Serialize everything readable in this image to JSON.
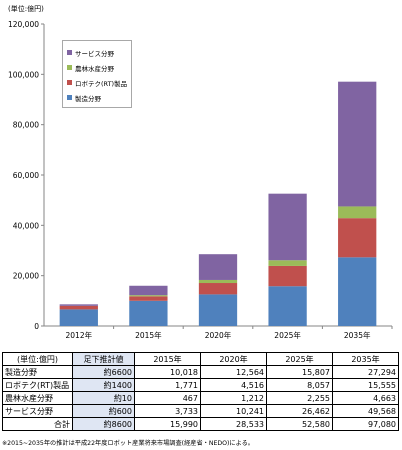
{
  "chart_data": {
    "type": "stacked-bar",
    "unit_label": "(単位:億円)",
    "categories": [
      "2012年",
      "2015年",
      "2020年",
      "2025年",
      "2035年"
    ],
    "ylim": [
      0,
      120000
    ],
    "yticks": [
      "0",
      "20,000",
      "40,000",
      "60,000",
      "80,000",
      "100,000",
      "120,000"
    ],
    "grid": false,
    "legend_position": "top-left",
    "series": [
      {
        "name": "製造分野",
        "color": "#4f81bd",
        "values": [
          6600,
          10018,
          12564,
          15807,
          27294
        ]
      },
      {
        "name": "ロボテク(RT)製品",
        "color": "#c0504d",
        "values": [
          1400,
          1771,
          4516,
          8057,
          15555
        ]
      },
      {
        "name": "農林水産分野",
        "color": "#9bbb59",
        "values": [
          10,
          467,
          1212,
          2255,
          4663
        ]
      },
      {
        "name": "サービス分野",
        "color": "#8064a2",
        "values": [
          600,
          3733,
          10241,
          26462,
          49568
        ]
      }
    ]
  },
  "legend_order": [
    "サービス分野",
    "農林水産分野",
    "ロボテク(RT)製品",
    "製造分野"
  ],
  "table": {
    "header": [
      "(単位:億円)",
      "足下推計値",
      "2015年",
      "2020年",
      "2025年",
      "2035年"
    ],
    "rows": [
      [
        "製造分野",
        "約6600",
        "10,018",
        "12,564",
        "15,807",
        "27,294"
      ],
      [
        "ロボテク(RT)製品",
        "約1400",
        "1,771",
        "4,516",
        "8,057",
        "15,555"
      ],
      [
        "農林水産分野",
        "約10",
        "467",
        "1,212",
        "2,255",
        "4,663"
      ],
      [
        "サービス分野",
        "約600",
        "3,733",
        "10,241",
        "26,462",
        "49,568"
      ],
      [
        "合計",
        "約8600",
        "15,990",
        "28,533",
        "52,580",
        "97,080"
      ]
    ]
  },
  "footnote": "※2015~2035年の推計は平成22年度ロボット産業将来市場調査(経産省・NEDO)による。"
}
